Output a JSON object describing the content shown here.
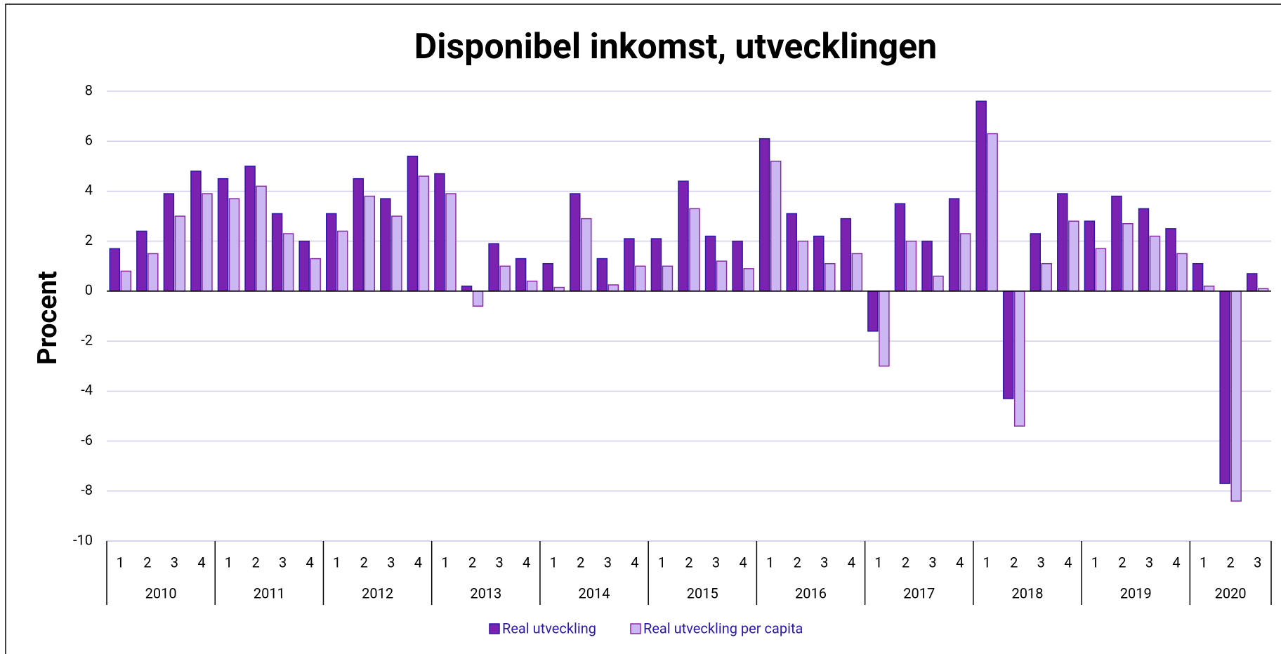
{
  "chart_data": {
    "type": "bar",
    "title": "Disponibel inkomst, utvecklingen",
    "y_label": "Procent",
    "categories": [
      "1",
      "2",
      "3",
      "4",
      "1",
      "2",
      "3",
      "4",
      "1",
      "2",
      "3",
      "4",
      "1",
      "2",
      "3",
      "4",
      "1",
      "2",
      "3",
      "4",
      "1",
      "2",
      "3",
      "4",
      "1",
      "2",
      "3",
      "4",
      "1",
      "2",
      "3",
      "4",
      "1",
      "2",
      "3",
      "4",
      "1",
      "2",
      "3",
      "4",
      "1",
      "2",
      "3"
    ],
    "years": [
      "2010",
      "2011",
      "2012",
      "2013",
      "2014",
      "2015",
      "2016",
      "2017",
      "2018",
      "2019",
      "2020"
    ],
    "series": [
      {
        "name": "Real utveckling",
        "color": "#7b22b0",
        "values": [
          1.7,
          2.4,
          3.9,
          4.8,
          4.5,
          5.0,
          3.1,
          2.0,
          3.1,
          4.5,
          3.7,
          5.4,
          4.7,
          0.2,
          1.9,
          1.3,
          1.1,
          3.9,
          1.3,
          2.1,
          2.1,
          4.4,
          2.2,
          2.0,
          6.1,
          3.1,
          2.2,
          2.9,
          -1.6,
          3.5,
          2.0,
          3.7,
          7.6,
          -4.3,
          2.3,
          3.9,
          2.8,
          3.8,
          3.3,
          2.5,
          1.1,
          -7.7,
          0.7
        ]
      },
      {
        "name": "Real utveckling per capita",
        "color": "#cbb8f2",
        "values": [
          0.8,
          1.5,
          3.0,
          3.9,
          3.7,
          4.2,
          2.3,
          1.3,
          2.4,
          3.8,
          3.0,
          4.6,
          3.9,
          -0.6,
          1.0,
          0.4,
          0.15,
          2.9,
          0.25,
          1.0,
          1.0,
          3.3,
          1.2,
          0.9,
          5.2,
          2.0,
          1.1,
          1.5,
          -3.0,
          2.0,
          0.6,
          2.3,
          6.3,
          -5.4,
          1.1,
          2.8,
          1.7,
          2.7,
          2.2,
          1.5,
          0.2,
          -8.4,
          0.1
        ]
      }
    ],
    "ylim": [
      -10,
      8
    ],
    "yticks": [
      -10,
      -8,
      -6,
      -4,
      -2,
      0,
      2,
      4,
      6,
      8
    ],
    "grid": true
  }
}
